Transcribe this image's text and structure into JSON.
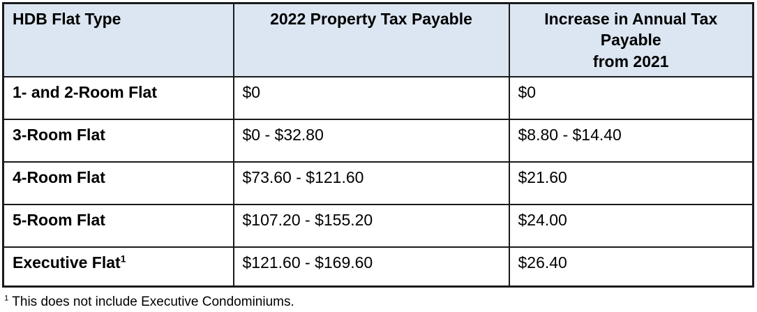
{
  "style": {
    "header_bg": "#dbe6f2",
    "border_color": "#1a1a1a"
  },
  "table": {
    "headers": {
      "flat_type": "HDB Flat Type",
      "tax_2022": "2022 Property Tax Payable",
      "increase_line1": "Increase in Annual Tax",
      "increase_line2": "Payable",
      "increase_line3": "from 2021"
    },
    "rows": [
      {
        "flat_type": "1- and 2-Room Flat",
        "tax_2022": "$0",
        "increase_from_2021": "$0"
      },
      {
        "flat_type": "3-Room Flat",
        "tax_2022": "$0 - $32.80",
        "increase_from_2021": "$8.80 - $14.40"
      },
      {
        "flat_type": "4-Room Flat",
        "tax_2022": "$73.60 - $121.60",
        "increase_from_2021": "$21.60"
      },
      {
        "flat_type": "5-Room Flat",
        "tax_2022": "$107.20 - $155.20",
        "increase_from_2021": "$24.00"
      },
      {
        "flat_type": "Executive Flat",
        "flat_type_footnote_marker": "1",
        "tax_2022": "$121.60 - $169.60",
        "increase_from_2021": "$26.40"
      }
    ]
  },
  "footnote": {
    "marker": "1",
    "text": " This does not include Executive Condominiums."
  }
}
